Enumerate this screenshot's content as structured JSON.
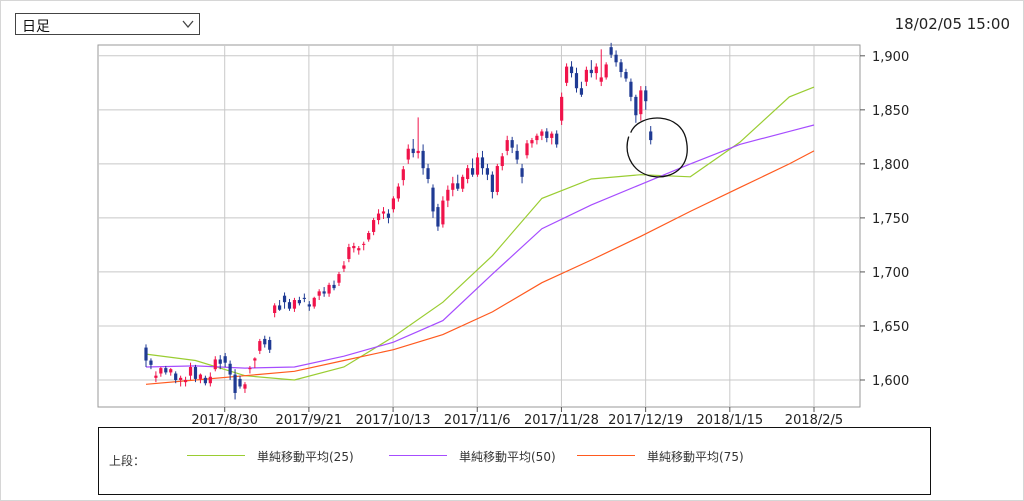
{
  "toolbar": {
    "period_select": {
      "selected": "日足"
    },
    "timestamp": "18/02/05 15:00"
  },
  "legend": {
    "prefix": "上段：",
    "items": [
      {
        "label": "単純移動平均(25)",
        "color": "#9acd32"
      },
      {
        "label": "単純移動平均(50)",
        "color": "#a64dff"
      },
      {
        "label": "単純移動平均(75)",
        "color": "#ff5a1f"
      }
    ]
  },
  "colors": {
    "up": "#f0134a",
    "down": "#1f3a93",
    "grid": "#c8c8c8",
    "axis": "#555555",
    "annotation": "#111111"
  },
  "chart_data": {
    "type": "candlestick",
    "title": "",
    "ylim": [
      1575,
      1910
    ],
    "y_ticks": [
      "1,600",
      "1,650",
      "1,700",
      "1,750",
      "1,800",
      "1,850",
      "1,900"
    ],
    "y_tick_values": [
      1600,
      1650,
      1700,
      1750,
      1800,
      1850,
      1900
    ],
    "x_ticks": [
      "2017/8/30",
      "2017/9/21",
      "2017/10/13",
      "2017/11/6",
      "2017/11/28",
      "2017/12/19",
      "2018/1/15",
      "2018/2/5"
    ],
    "x_tick_positions": [
      18,
      34,
      50,
      66,
      82,
      98,
      114,
      130
    ],
    "annotation": "circle around latest candles",
    "candles": [
      [
        1630,
        1633,
        1612,
        1618
      ],
      [
        1618,
        1620,
        1610,
        1614
      ],
      [
        1602,
        1608,
        1598,
        1604
      ],
      [
        1606,
        1612,
        1603,
        1611
      ],
      [
        1611,
        1613,
        1605,
        1607
      ],
      [
        1607,
        1611,
        1604,
        1610
      ],
      [
        1606,
        1608,
        1597,
        1600
      ],
      [
        1600,
        1604,
        1594,
        1602
      ],
      [
        1598,
        1603,
        1594,
        1600
      ],
      [
        1604,
        1616,
        1600,
        1612
      ],
      [
        1612,
        1614,
        1598,
        1601
      ],
      [
        1601,
        1606,
        1597,
        1605
      ],
      [
        1602,
        1604,
        1595,
        1597
      ],
      [
        1597,
        1607,
        1594,
        1603
      ],
      [
        1610,
        1622,
        1608,
        1619
      ],
      [
        1619,
        1623,
        1610,
        1615
      ],
      [
        1622,
        1625,
        1612,
        1616
      ],
      [
        1615,
        1618,
        1600,
        1605
      ],
      [
        1605,
        1610,
        1582,
        1588
      ],
      [
        1601,
        1604,
        1592,
        1594
      ],
      [
        1592,
        1598,
        1588,
        1596
      ],
      [
        1610,
        1613,
        1606,
        1611
      ],
      [
        1618,
        1621,
        1611,
        1620
      ],
      [
        1627,
        1638,
        1624,
        1636
      ],
      [
        1638,
        1641,
        1630,
        1633
      ],
      [
        1637,
        1640,
        1625,
        1628
      ],
      [
        1662,
        1671,
        1658,
        1669
      ],
      [
        1669,
        1674,
        1664,
        1665
      ],
      [
        1678,
        1681,
        1666,
        1672
      ],
      [
        1672,
        1675,
        1664,
        1666
      ],
      [
        1666,
        1676,
        1663,
        1674
      ],
      [
        1674,
        1677,
        1669,
        1671
      ],
      [
        1676,
        1680,
        1672,
        1675
      ],
      [
        1670,
        1673,
        1664,
        1668
      ],
      [
        1668,
        1677,
        1666,
        1676
      ],
      [
        1678,
        1684,
        1674,
        1682
      ],
      [
        1682,
        1686,
        1677,
        1680
      ],
      [
        1680,
        1690,
        1677,
        1688
      ],
      [
        1688,
        1692,
        1683,
        1685
      ],
      [
        1690,
        1700,
        1687,
        1698
      ],
      [
        1703,
        1710,
        1700,
        1706
      ],
      [
        1712,
        1726,
        1709,
        1723
      ],
      [
        1722,
        1727,
        1718,
        1724
      ],
      [
        1720,
        1724,
        1716,
        1722
      ],
      [
        1725,
        1728,
        1720,
        1726
      ],
      [
        1730,
        1738,
        1728,
        1736
      ],
      [
        1737,
        1750,
        1734,
        1748
      ],
      [
        1748,
        1758,
        1744,
        1754
      ],
      [
        1754,
        1760,
        1749,
        1756
      ],
      [
        1754,
        1758,
        1745,
        1750
      ],
      [
        1758,
        1770,
        1755,
        1768
      ],
      [
        1768,
        1782,
        1765,
        1779
      ],
      [
        1785,
        1798,
        1780,
        1795
      ],
      [
        1804,
        1818,
        1800,
        1814
      ],
      [
        1814,
        1823,
        1806,
        1810
      ],
      [
        1810,
        1843,
        1805,
        1812
      ],
      [
        1812,
        1818,
        1790,
        1796
      ],
      [
        1796,
        1800,
        1782,
        1786
      ],
      [
        1778,
        1781,
        1750,
        1756
      ],
      [
        1760,
        1763,
        1738,
        1742
      ],
      [
        1744,
        1770,
        1741,
        1766
      ],
      [
        1766,
        1780,
        1760,
        1776
      ],
      [
        1776,
        1788,
        1770,
        1782
      ],
      [
        1782,
        1790,
        1775,
        1777
      ],
      [
        1777,
        1790,
        1774,
        1788
      ],
      [
        1786,
        1799,
        1782,
        1796
      ],
      [
        1796,
        1805,
        1788,
        1790
      ],
      [
        1790,
        1810,
        1788,
        1806
      ],
      [
        1806,
        1812,
        1790,
        1796
      ],
      [
        1796,
        1800,
        1785,
        1790
      ],
      [
        1790,
        1793,
        1768,
        1774
      ],
      [
        1774,
        1800,
        1771,
        1798
      ],
      [
        1798,
        1810,
        1794,
        1807
      ],
      [
        1812,
        1826,
        1808,
        1822
      ],
      [
        1822,
        1825,
        1810,
        1815
      ],
      [
        1812,
        1818,
        1800,
        1804
      ],
      [
        1796,
        1800,
        1782,
        1788
      ],
      [
        1808,
        1822,
        1805,
        1819
      ],
      [
        1819,
        1824,
        1815,
        1822
      ],
      [
        1822,
        1828,
        1818,
        1826
      ],
      [
        1826,
        1832,
        1822,
        1830
      ],
      [
        1830,
        1833,
        1820,
        1824
      ],
      [
        1824,
        1830,
        1818,
        1828
      ],
      [
        1828,
        1831,
        1815,
        1818
      ],
      [
        1840,
        1866,
        1836,
        1862
      ],
      [
        1875,
        1893,
        1872,
        1890
      ],
      [
        1890,
        1895,
        1880,
        1884
      ],
      [
        1884,
        1889,
        1866,
        1870
      ],
      [
        1870,
        1876,
        1862,
        1864
      ],
      [
        1876,
        1890,
        1872,
        1887
      ],
      [
        1887,
        1896,
        1880,
        1884
      ],
      [
        1884,
        1893,
        1878,
        1890
      ],
      [
        1876,
        1906,
        1872,
        1880
      ],
      [
        1880,
        1894,
        1878,
        1892
      ],
      [
        1908,
        1912,
        1898,
        1901
      ],
      [
        1901,
        1905,
        1890,
        1894
      ],
      [
        1894,
        1897,
        1880,
        1885
      ],
      [
        1885,
        1888,
        1876,
        1879
      ],
      [
        1876,
        1879,
        1858,
        1862
      ],
      [
        1862,
        1864,
        1838,
        1845
      ],
      [
        1846,
        1872,
        1840,
        1868
      ],
      [
        1868,
        1872,
        1850,
        1858
      ],
      [
        1830,
        1835,
        1818,
        1822
      ]
    ],
    "series": [
      {
        "name": "単純移動平均(25)",
        "color": "#9acd32",
        "x": [
          0,
          10,
          20,
          30,
          40,
          50,
          60,
          70,
          80,
          90,
          100,
          110,
          120,
          130,
          135
        ],
        "values": [
          1624,
          1618,
          1604,
          1600,
          1612,
          1640,
          1672,
          1715,
          1768,
          1786,
          1790,
          1788,
          1820,
          1862,
          1871
        ]
      },
      {
        "name": "単純移動平均(50)",
        "color": "#a64dff",
        "x": [
          0,
          10,
          20,
          30,
          40,
          50,
          60,
          70,
          80,
          90,
          100,
          110,
          120,
          130,
          135
        ],
        "values": [
          1612,
          1613,
          1611,
          1612,
          1622,
          1635,
          1655,
          1698,
          1740,
          1762,
          1781,
          1800,
          1818,
          1830,
          1836
        ]
      },
      {
        "name": "単純移動平均(75)",
        "color": "#ff5a1f",
        "x": [
          0,
          10,
          20,
          30,
          40,
          50,
          60,
          70,
          80,
          90,
          100,
          110,
          120,
          130,
          135
        ],
        "values": [
          1596,
          1600,
          1604,
          1608,
          1618,
          1628,
          1642,
          1663,
          1690,
          1711,
          1733,
          1756,
          1778,
          1800,
          1812
        ]
      }
    ]
  }
}
